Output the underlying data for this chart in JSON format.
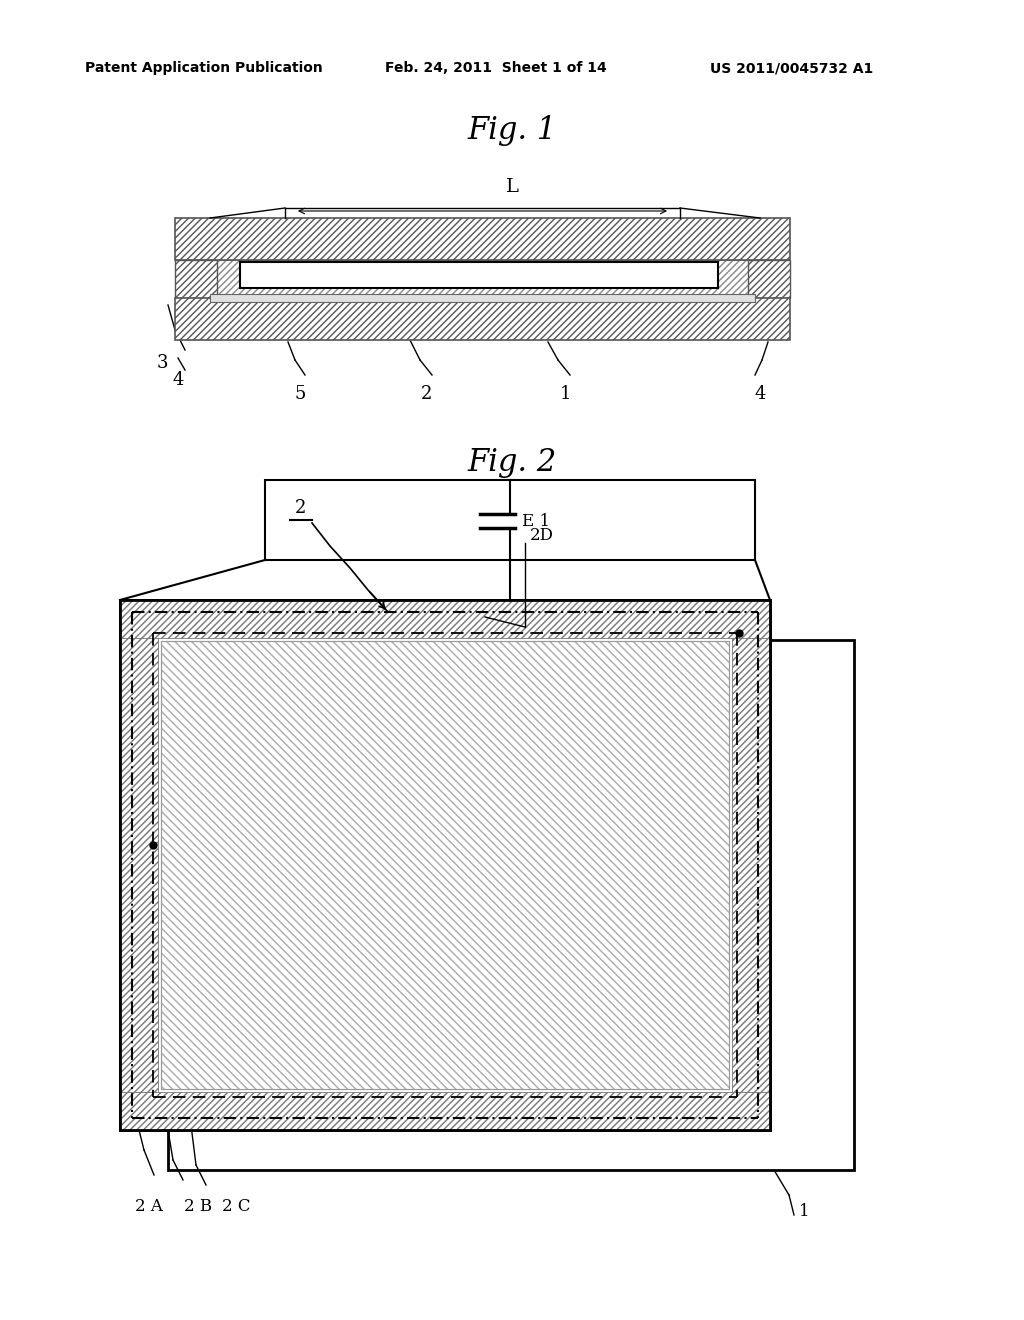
{
  "bg_color": "#ffffff",
  "header_left": "Patent Application Publication",
  "header_mid": "Feb. 24, 2011  Sheet 1 of 14",
  "header_right": "US 2011/0045732 A1",
  "fig1_label": "Fig. 1",
  "fig2_label": "Fig. 2"
}
